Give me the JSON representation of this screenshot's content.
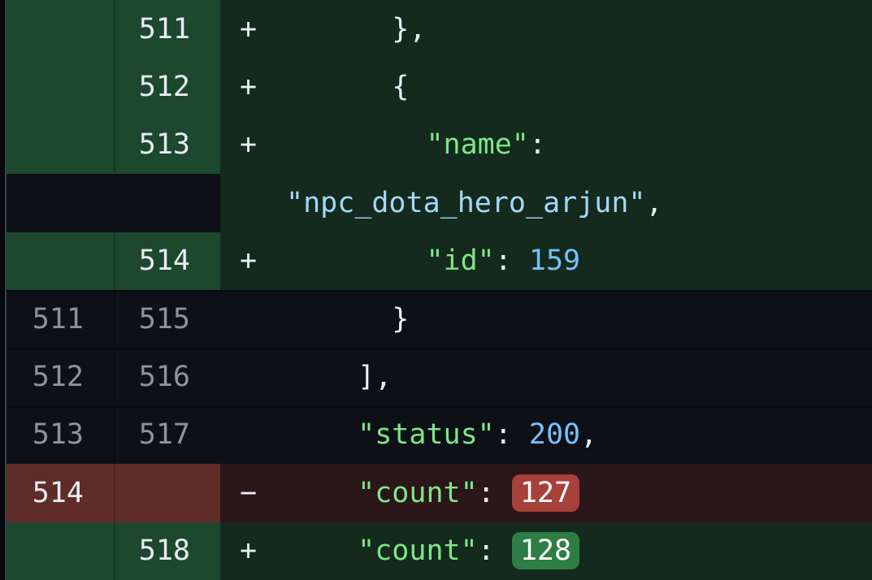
{
  "colors": {
    "bg": "#0d1117",
    "edge-bg": "#06090d",
    "edge-line": "#39414a",
    "fg": "#e6edf3",
    "muted": "#8b949e",
    "key": "#7ee787",
    "str": "#a5d6ff",
    "num": "#79c0ff",
    "added-gutter-bg": "#1e482d",
    "added-code-bg": "#132a1c",
    "removed-gutter-bg": "#5f2c29",
    "removed-code-bg": "#2b1619",
    "pill-added-bg": "#2d7d44",
    "pill-removed-bg": "#a6413a",
    "pill-fg": "#ffffff",
    "separator": "rgba(1,4,9,0.5)"
  },
  "diff": {
    "rows": [
      {
        "kind": "added",
        "old_line": "",
        "new_line": "511",
        "marker": "+",
        "lines": [
          {
            "cont": false,
            "tokens": [
              {
                "c": "fg",
                "t": "    },"
              }
            ]
          }
        ]
      },
      {
        "kind": "added",
        "old_line": "",
        "new_line": "512",
        "marker": "+",
        "lines": [
          {
            "cont": false,
            "tokens": [
              {
                "c": "fg",
                "t": "    {"
              }
            ]
          }
        ]
      },
      {
        "kind": "added",
        "old_line": "",
        "new_line": "513",
        "marker": "+",
        "lines": [
          {
            "cont": false,
            "tokens": [
              {
                "c": "fg",
                "t": "      "
              },
              {
                "c": "key",
                "t": "\"name\""
              },
              {
                "c": "fg",
                "t": ": "
              }
            ]
          },
          {
            "cont": true,
            "tokens": [
              {
                "c": "str",
                "t": "\"npc_dota_hero_arjun\""
              },
              {
                "c": "fg",
                "t": ","
              }
            ]
          }
        ]
      },
      {
        "kind": "added",
        "old_line": "",
        "new_line": "514",
        "marker": "+",
        "lines": [
          {
            "cont": false,
            "tokens": [
              {
                "c": "fg",
                "t": "      "
              },
              {
                "c": "key",
                "t": "\"id\""
              },
              {
                "c": "fg",
                "t": ": "
              },
              {
                "c": "num",
                "t": "159"
              }
            ]
          }
        ]
      },
      {
        "kind": "context",
        "old_line": "511",
        "new_line": "515",
        "marker": "",
        "lines": [
          {
            "cont": false,
            "tokens": [
              {
                "c": "fg",
                "t": "    }"
              }
            ]
          }
        ]
      },
      {
        "kind": "context",
        "old_line": "512",
        "new_line": "516",
        "marker": "",
        "lines": [
          {
            "cont": false,
            "tokens": [
              {
                "c": "fg",
                "t": "  ],"
              }
            ]
          }
        ]
      },
      {
        "kind": "context",
        "old_line": "513",
        "new_line": "517",
        "marker": "",
        "lines": [
          {
            "cont": false,
            "tokens": [
              {
                "c": "fg",
                "t": "  "
              },
              {
                "c": "key",
                "t": "\"status\""
              },
              {
                "c": "fg",
                "t": ": "
              },
              {
                "c": "num",
                "t": "200"
              },
              {
                "c": "fg",
                "t": ","
              }
            ]
          }
        ]
      },
      {
        "kind": "removed",
        "old_line": "514",
        "new_line": "",
        "marker": "−",
        "lines": [
          {
            "cont": false,
            "tokens": [
              {
                "c": "fg",
                "t": "  "
              },
              {
                "c": "key",
                "t": "\"count\""
              },
              {
                "c": "fg",
                "t": ": "
              },
              {
                "c": "delpill",
                "t": "127"
              }
            ]
          }
        ]
      },
      {
        "kind": "added",
        "old_line": "",
        "new_line": "518",
        "marker": "+",
        "lines": [
          {
            "cont": false,
            "tokens": [
              {
                "c": "fg",
                "t": "  "
              },
              {
                "c": "key",
                "t": "\"count\""
              },
              {
                "c": "fg",
                "t": ": "
              },
              {
                "c": "addpill",
                "t": "128"
              }
            ]
          }
        ]
      }
    ]
  }
}
